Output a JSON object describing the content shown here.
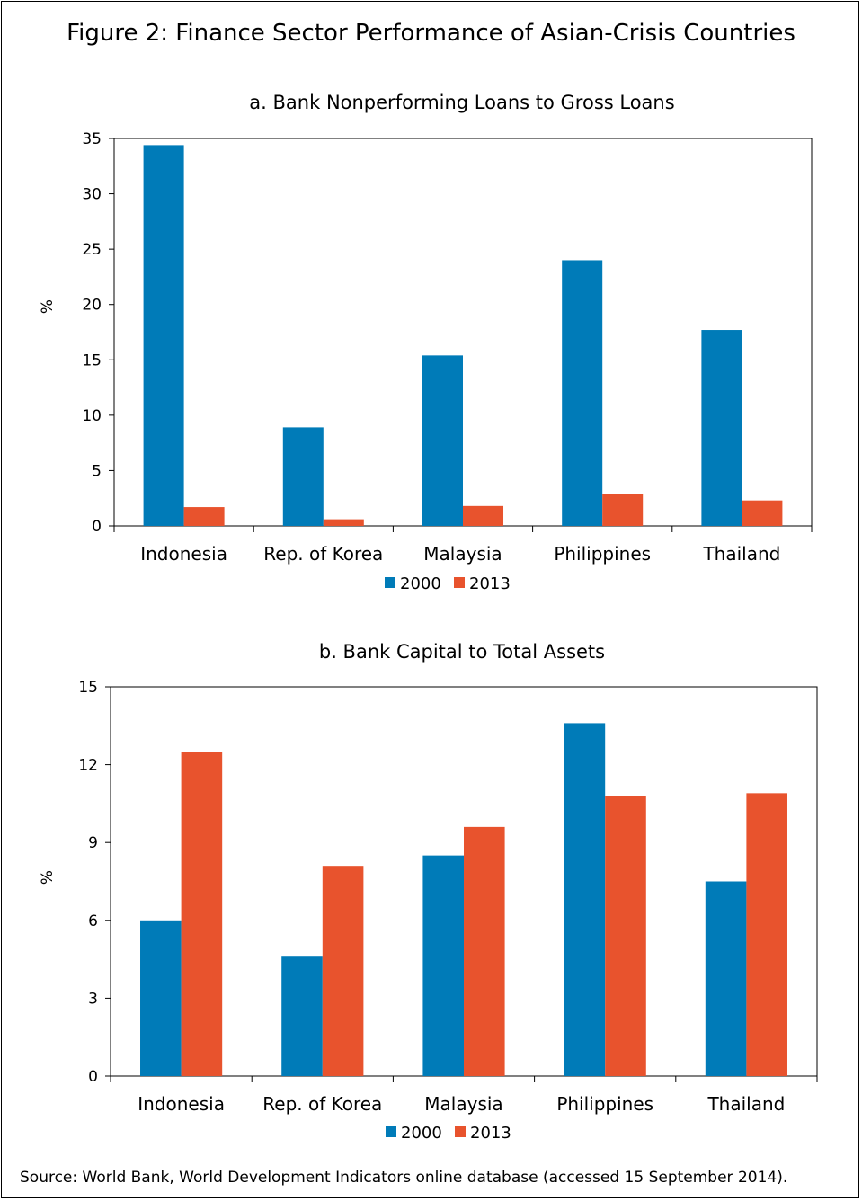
{
  "figure_title": "Figure 2: Finance Sector Performance of Asian-Crisis Countries",
  "source": "Source: World Bank, World Development Indicators online database (accessed 15 September 2014).",
  "colors": {
    "2000": "#007bb8",
    "2013": "#e8532d"
  },
  "chart_data": [
    {
      "type": "bar",
      "title": "a. Bank Nonperforming Loans to Gross Loans",
      "xlabel": "",
      "ylabel": "%",
      "ylim": [
        0,
        35
      ],
      "yticks": [
        0,
        5,
        10,
        15,
        20,
        25,
        30,
        35
      ],
      "categories": [
        "Indonesia",
        "Rep. of Korea",
        "Malaysia",
        "Philippines",
        "Thailand"
      ],
      "series": [
        {
          "name": "2000",
          "values": [
            34.4,
            8.9,
            15.4,
            24.0,
            17.7
          ]
        },
        {
          "name": "2013",
          "values": [
            1.7,
            0.6,
            1.8,
            2.9,
            2.3
          ]
        }
      ],
      "legend": "bottom-center",
      "grid": false
    },
    {
      "type": "bar",
      "title": "b. Bank Capital to Total Assets",
      "xlabel": "",
      "ylabel": "%",
      "ylim": [
        0,
        15
      ],
      "yticks": [
        0,
        3,
        6,
        9,
        12,
        15
      ],
      "categories": [
        "Indonesia",
        "Rep. of Korea",
        "Malaysia",
        "Philippines",
        "Thailand"
      ],
      "series": [
        {
          "name": "2000",
          "values": [
            6.0,
            4.6,
            8.5,
            13.6,
            7.5
          ]
        },
        {
          "name": "2013",
          "values": [
            12.5,
            8.1,
            9.6,
            10.8,
            10.9
          ]
        }
      ],
      "legend": "bottom-center",
      "grid": false
    }
  ]
}
